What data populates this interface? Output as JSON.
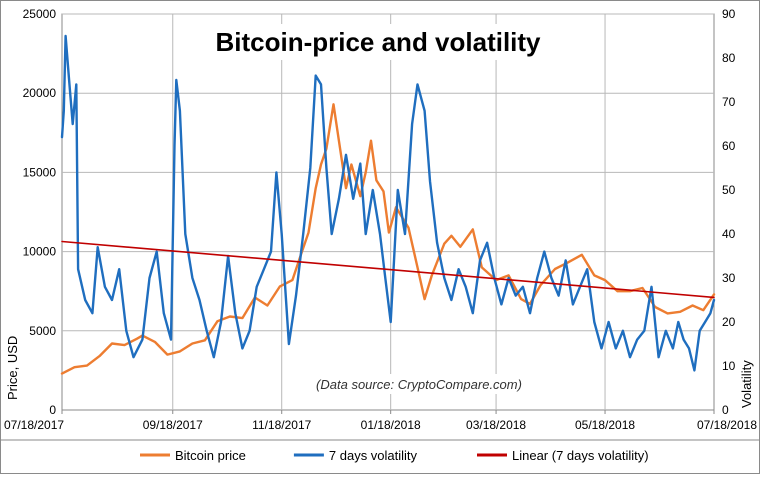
{
  "chart_data": {
    "type": "line",
    "title": "Bitcoin-price and volatility",
    "annotation": "(Data source: CryptoCompare.com)",
    "ylabel": "Price, USD",
    "y2label": "Volatility",
    "ylim": [
      0,
      25000
    ],
    "y2lim": [
      0,
      90
    ],
    "yticks": [
      0,
      5000,
      10000,
      15000,
      20000,
      25000
    ],
    "y2ticks": [
      0,
      10,
      20,
      30,
      40,
      50,
      60,
      70,
      80,
      90
    ],
    "xrange": [
      "2017-07-18",
      "2018-07-18"
    ],
    "xticks": [
      "07/18/2017",
      "09/18/2017",
      "11/18/2017",
      "01/18/2018",
      "03/18/2018",
      "05/18/2018",
      "07/18/2018"
    ],
    "grid": true,
    "legend_position": "bottom",
    "series": [
      {
        "name": "Bitcoin price",
        "axis": "left",
        "color": "#ed7d31",
        "points": [
          [
            "2017-07-18",
            2300
          ],
          [
            "2017-07-25",
            2700
          ],
          [
            "2017-08-01",
            2800
          ],
          [
            "2017-08-08",
            3400
          ],
          [
            "2017-08-15",
            4200
          ],
          [
            "2017-08-22",
            4100
          ],
          [
            "2017-08-29",
            4500
          ],
          [
            "2017-09-01",
            4700
          ],
          [
            "2017-09-08",
            4300
          ],
          [
            "2017-09-15",
            3500
          ],
          [
            "2017-09-22",
            3700
          ],
          [
            "2017-09-29",
            4200
          ],
          [
            "2017-10-06",
            4400
          ],
          [
            "2017-10-13",
            5600
          ],
          [
            "2017-10-20",
            5900
          ],
          [
            "2017-10-27",
            5800
          ],
          [
            "2017-11-03",
            7100
          ],
          [
            "2017-11-10",
            6600
          ],
          [
            "2017-11-17",
            7800
          ],
          [
            "2017-11-24",
            8200
          ],
          [
            "2017-11-29",
            9900
          ],
          [
            "2017-12-03",
            11200
          ],
          [
            "2017-12-07",
            14000
          ],
          [
            "2017-12-10",
            15500
          ],
          [
            "2017-12-13",
            16500
          ],
          [
            "2017-12-17",
            19300
          ],
          [
            "2017-12-20",
            17000
          ],
          [
            "2017-12-24",
            14000
          ],
          [
            "2017-12-27",
            15500
          ],
          [
            "2018-01-01",
            13500
          ],
          [
            "2018-01-04",
            15000
          ],
          [
            "2018-01-07",
            17000
          ],
          [
            "2018-01-10",
            14500
          ],
          [
            "2018-01-14",
            13800
          ],
          [
            "2018-01-17",
            11200
          ],
          [
            "2018-01-21",
            12800
          ],
          [
            "2018-01-28",
            11500
          ],
          [
            "2018-02-02",
            9000
          ],
          [
            "2018-02-06",
            7000
          ],
          [
            "2018-02-10",
            8500
          ],
          [
            "2018-02-17",
            10500
          ],
          [
            "2018-02-21",
            11000
          ],
          [
            "2018-02-26",
            10300
          ],
          [
            "2018-03-05",
            11400
          ],
          [
            "2018-03-10",
            9000
          ],
          [
            "2018-03-18",
            8200
          ],
          [
            "2018-03-25",
            8500
          ],
          [
            "2018-04-01",
            7000
          ],
          [
            "2018-04-06",
            6700
          ],
          [
            "2018-04-12",
            7900
          ],
          [
            "2018-04-20",
            8900
          ],
          [
            "2018-04-27",
            9300
          ],
          [
            "2018-05-05",
            9800
          ],
          [
            "2018-05-12",
            8500
          ],
          [
            "2018-05-18",
            8200
          ],
          [
            "2018-05-25",
            7500
          ],
          [
            "2018-06-01",
            7500
          ],
          [
            "2018-06-08",
            7700
          ],
          [
            "2018-06-15",
            6500
          ],
          [
            "2018-06-22",
            6100
          ],
          [
            "2018-06-29",
            6200
          ],
          [
            "2018-07-06",
            6600
          ],
          [
            "2018-07-12",
            6300
          ],
          [
            "2018-07-18",
            7300
          ]
        ]
      },
      {
        "name": "7 days volatility",
        "axis": "right",
        "color": "#1f6ebf",
        "points": [
          [
            "2017-07-18",
            62
          ],
          [
            "2017-07-19",
            68
          ],
          [
            "2017-07-20",
            85
          ],
          [
            "2017-07-22",
            75
          ],
          [
            "2017-07-24",
            65
          ],
          [
            "2017-07-26",
            74
          ],
          [
            "2017-07-27",
            32
          ],
          [
            "2017-07-31",
            25
          ],
          [
            "2017-08-04",
            22
          ],
          [
            "2017-08-07",
            37
          ],
          [
            "2017-08-11",
            28
          ],
          [
            "2017-08-15",
            25
          ],
          [
            "2017-08-19",
            32
          ],
          [
            "2017-08-23",
            18
          ],
          [
            "2017-08-27",
            12
          ],
          [
            "2017-09-01",
            16
          ],
          [
            "2017-09-05",
            30
          ],
          [
            "2017-09-09",
            36
          ],
          [
            "2017-09-13",
            22
          ],
          [
            "2017-09-17",
            16
          ],
          [
            "2017-09-19",
            60
          ],
          [
            "2017-09-20",
            75
          ],
          [
            "2017-09-22",
            68
          ],
          [
            "2017-09-25",
            40
          ],
          [
            "2017-09-29",
            30
          ],
          [
            "2017-10-03",
            25
          ],
          [
            "2017-10-07",
            18
          ],
          [
            "2017-10-11",
            12
          ],
          [
            "2017-10-15",
            20
          ],
          [
            "2017-10-19",
            35
          ],
          [
            "2017-10-23",
            22
          ],
          [
            "2017-10-27",
            14
          ],
          [
            "2017-10-31",
            18
          ],
          [
            "2017-11-04",
            28
          ],
          [
            "2017-11-08",
            32
          ],
          [
            "2017-11-12",
            36
          ],
          [
            "2017-11-15",
            54
          ],
          [
            "2017-11-18",
            40
          ],
          [
            "2017-11-22",
            15
          ],
          [
            "2017-11-26",
            26
          ],
          [
            "2017-11-30",
            40
          ],
          [
            "2017-12-04",
            55
          ],
          [
            "2017-12-07",
            76
          ],
          [
            "2017-12-10",
            74
          ],
          [
            "2017-12-13",
            55
          ],
          [
            "2017-12-16",
            40
          ],
          [
            "2017-12-20",
            48
          ],
          [
            "2017-12-24",
            58
          ],
          [
            "2017-12-28",
            48
          ],
          [
            "2018-01-01",
            56
          ],
          [
            "2018-01-04",
            40
          ],
          [
            "2018-01-08",
            50
          ],
          [
            "2018-01-12",
            40
          ],
          [
            "2018-01-15",
            30
          ],
          [
            "2018-01-18",
            20
          ],
          [
            "2018-01-22",
            50
          ],
          [
            "2018-01-26",
            40
          ],
          [
            "2018-01-30",
            65
          ],
          [
            "2018-02-02",
            74
          ],
          [
            "2018-02-06",
            68
          ],
          [
            "2018-02-09",
            52
          ],
          [
            "2018-02-13",
            38
          ],
          [
            "2018-02-17",
            30
          ],
          [
            "2018-02-21",
            25
          ],
          [
            "2018-02-25",
            32
          ],
          [
            "2018-03-01",
            28
          ],
          [
            "2018-03-05",
            22
          ],
          [
            "2018-03-09",
            34
          ],
          [
            "2018-03-13",
            38
          ],
          [
            "2018-03-17",
            30
          ],
          [
            "2018-03-21",
            24
          ],
          [
            "2018-03-25",
            30
          ],
          [
            "2018-03-29",
            26
          ],
          [
            "2018-04-02",
            28
          ],
          [
            "2018-04-06",
            22
          ],
          [
            "2018-04-10",
            30
          ],
          [
            "2018-04-14",
            36
          ],
          [
            "2018-04-18",
            30
          ],
          [
            "2018-04-22",
            26
          ],
          [
            "2018-04-26",
            34
          ],
          [
            "2018-04-30",
            24
          ],
          [
            "2018-05-04",
            28
          ],
          [
            "2018-05-08",
            32
          ],
          [
            "2018-05-12",
            20
          ],
          [
            "2018-05-16",
            14
          ],
          [
            "2018-05-20",
            20
          ],
          [
            "2018-05-24",
            14
          ],
          [
            "2018-05-28",
            18
          ],
          [
            "2018-06-01",
            12
          ],
          [
            "2018-06-05",
            16
          ],
          [
            "2018-06-09",
            18
          ],
          [
            "2018-06-13",
            28
          ],
          [
            "2018-06-17",
            12
          ],
          [
            "2018-06-21",
            18
          ],
          [
            "2018-06-25",
            14
          ],
          [
            "2018-06-28",
            20
          ],
          [
            "2018-07-01",
            16
          ],
          [
            "2018-07-04",
            14
          ],
          [
            "2018-07-07",
            9
          ],
          [
            "2018-07-10",
            18
          ],
          [
            "2018-07-13",
            20
          ],
          [
            "2018-07-16",
            22
          ],
          [
            "2018-07-18",
            25
          ]
        ]
      },
      {
        "name": "Linear (7 days volatility)",
        "axis": "right",
        "color": "#c00000",
        "points": [
          [
            "2017-07-18",
            38.3
          ],
          [
            "2018-07-18",
            25.6
          ]
        ]
      }
    ]
  }
}
